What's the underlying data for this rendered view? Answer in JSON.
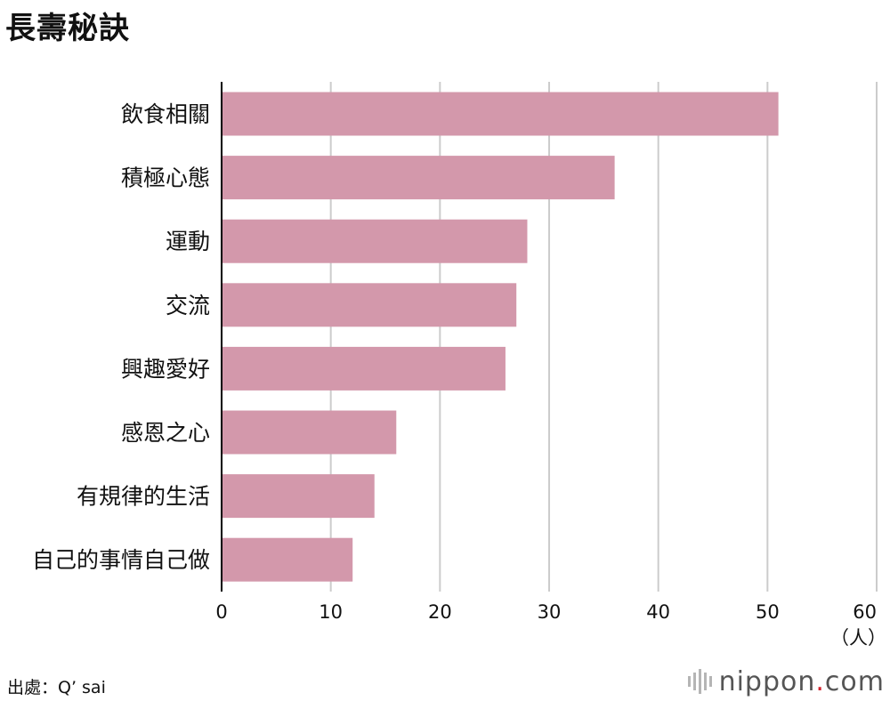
{
  "title": "長壽秘訣",
  "source": "出處：Q’ sai",
  "logo": {
    "name": "nippon",
    "dot": ".",
    "suffix": "com",
    "icon": "sound-bars-icon"
  },
  "colors": {
    "bar": "#d398ab",
    "grid": "#cccccc",
    "axis": "#000000",
    "logo_dot": "#d4202c"
  },
  "chart_data": {
    "type": "bar",
    "orientation": "horizontal",
    "title": "長壽秘訣",
    "categories": [
      "飲食相關",
      "積極心態",
      "運動",
      "交流",
      "興趣愛好",
      "感恩之心",
      "有規律的生活",
      "自己的事情自己做"
    ],
    "values": [
      51,
      36,
      28,
      27,
      26,
      16,
      14,
      12
    ],
    "xlim": [
      0,
      60
    ],
    "xticks": [
      0,
      10,
      20,
      30,
      40,
      50,
      60
    ],
    "unit": "（人）",
    "grid": true,
    "legend": "none"
  }
}
